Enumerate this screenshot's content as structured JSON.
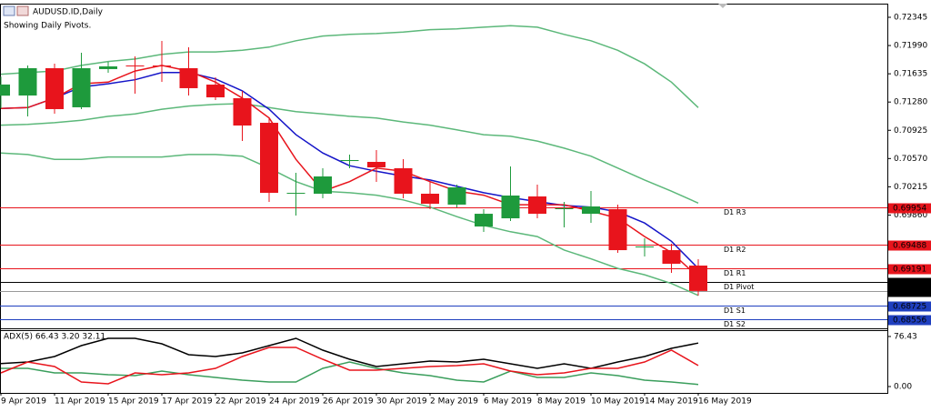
{
  "chart_data": [
    {
      "type": "candlestick",
      "title": "AUDUSD.ID,Daily",
      "subtitle": "Showing Daily Pivots.",
      "categories": [
        "9 Apr 2019",
        null,
        "11 Apr 2019",
        null,
        "15 Apr 2019",
        null,
        "17 Apr 2019",
        null,
        "22 Apr 2019",
        null,
        "24 Apr 2019",
        null,
        "26 Apr 2019",
        null,
        "30 Apr 2019",
        null,
        "2 May 2019",
        null,
        "6 May 2019",
        null,
        "8 May 2019",
        null,
        "10 May 2019",
        null,
        "14 May 2019",
        null,
        "16 May 2019"
      ],
      "open": [
        0.7136,
        0.71362,
        0.71705,
        0.71214,
        0.71694,
        0.71739,
        0.71739,
        0.71705,
        0.71499,
        0.71328,
        0.71019,
        0.70128,
        0.70128,
        0.70539,
        0.70528,
        0.70448,
        0.70128,
        0.69991,
        0.69716,
        0.69819,
        0.70094,
        0.69934,
        0.69876,
        0.69934,
        0.69454,
        0.69419,
        0.69225
      ],
      "high": [
        0.716,
        0.71739,
        0.71762,
        0.71899,
        0.71785,
        0.71853,
        0.72048,
        0.71968,
        0.71591,
        0.71419,
        0.71076,
        0.70391,
        0.70448,
        0.70619,
        0.70676,
        0.70562,
        0.70276,
        0.70242,
        0.69934,
        0.70471,
        0.70242,
        0.70025,
        0.70162,
        0.69991,
        0.69568,
        0.69499,
        0.69305
      ],
      "low": [
        0.712,
        0.71099,
        0.71134,
        0.71191,
        0.71648,
        0.71385,
        0.71534,
        0.71362,
        0.71305,
        0.70791,
        0.70025,
        0.69854,
        0.70071,
        0.70448,
        0.70276,
        0.70071,
        0.69934,
        0.69956,
        0.69648,
        0.69785,
        0.69819,
        0.69705,
        0.69762,
        0.69385,
        0.69339,
        0.69134,
        0.68848
      ],
      "close": [
        0.715,
        0.71705,
        0.71191,
        0.71705,
        0.71728,
        0.71728,
        0.71728,
        0.71454,
        0.71339,
        0.70985,
        0.70139,
        0.70139,
        0.70345,
        0.70551,
        0.70459,
        0.70128,
        0.70002,
        0.70208,
        0.69876,
        0.70105,
        0.69876,
        0.69945,
        0.69968,
        0.69419,
        0.69465,
        0.69248,
        0.68906
      ],
      "up_color": "#1e9a3c",
      "down_color": "#e8141c",
      "series": [
        {
          "color": "#5cb87a",
          "values": [
            0.7163,
            0.7165,
            0.7167,
            0.7174,
            0.7179,
            0.7182,
            0.7188,
            0.7191,
            0.7191,
            0.7193,
            0.7197,
            0.7205,
            0.7211,
            0.7213,
            0.7214,
            0.7216,
            0.7219,
            0.722,
            0.7222,
            0.7224,
            0.7222,
            0.7213,
            0.7205,
            0.7193,
            0.7176,
            0.7153,
            0.7121
          ]
        },
        {
          "color": "#5cb87a",
          "values": [
            0.7099,
            0.71,
            0.7102,
            0.7105,
            0.711,
            0.7113,
            0.7119,
            0.7123,
            0.7125,
            0.7126,
            0.7121,
            0.7116,
            0.7113,
            0.711,
            0.7108,
            0.7103,
            0.7099,
            0.7093,
            0.7087,
            0.7085,
            0.7079,
            0.707,
            0.706,
            0.7045,
            0.703,
            0.7016,
            0.7001
          ]
        },
        {
          "color": "#5cb87a",
          "values": [
            0.7064,
            0.7062,
            0.7056,
            0.7056,
            0.7059,
            0.7059,
            0.7059,
            0.7062,
            0.7062,
            0.706,
            0.7045,
            0.7028,
            0.7016,
            0.7014,
            0.7011,
            0.7005,
            0.6996,
            0.6984,
            0.6973,
            0.6965,
            0.6959,
            0.6942,
            0.6931,
            0.6919,
            0.6911,
            0.69,
            0.6885
          ]
        },
        {
          "color": "#1414c8",
          "values": [
            0.712,
            0.7121,
            0.7133,
            0.7147,
            0.7151,
            0.7156,
            0.7165,
            0.7165,
            0.7157,
            0.7142,
            0.7119,
            0.7087,
            0.7064,
            0.7048,
            0.7041,
            0.7035,
            0.703,
            0.7022,
            0.7014,
            0.7008,
            0.7003,
            0.6998,
            0.6996,
            0.699,
            0.6976,
            0.6953,
            0.6919
          ]
        },
        {
          "color": "#e8141c",
          "values": [
            0.712,
            0.7121,
            0.7133,
            0.7151,
            0.7153,
            0.7167,
            0.7174,
            0.7167,
            0.7153,
            0.7133,
            0.7108,
            0.7056,
            0.7016,
            0.7028,
            0.7045,
            0.7041,
            0.7028,
            0.7016,
            0.7011,
            0.6999,
            0.6999,
            0.6999,
            0.6991,
            0.6982,
            0.6959,
            0.6939,
            0.6908
          ]
        }
      ],
      "levels": [
        {
          "name": "D1 R3",
          "value": 0.69954,
          "color": "#e8141c"
        },
        {
          "name": "D1 R2",
          "value": 0.69488,
          "color": "#e8141c"
        },
        {
          "name": "D1 R1",
          "value": 0.69191,
          "color": "#e8141c"
        },
        {
          "name": "D1 Pivot",
          "value": 0.69022,
          "color": "#000000"
        },
        {
          "name": "D1 S1",
          "value": 0.68725,
          "color": "#1f3fbf"
        },
        {
          "name": "D1 S2",
          "value": 0.68556,
          "color": "#1f3fbf"
        }
      ],
      "current_price": 0.68906,
      "ylim": [
        0.68448,
        0.72505
      ],
      "yticks": [
        0.72345,
        {
          "value": 0.7199,
          "label": "0.71990"
        },
        0.71635,
        {
          "value": 0.7128,
          "label": "0.71280"
        },
        0.70925,
        {
          "value": 0.7057,
          "label": "0.70570"
        },
        0.70215,
        {
          "value": 0.6986,
          "label": "0.69860"
        }
      ]
    },
    {
      "type": "line",
      "title": "ADX(5) 66.43 3.20 32.11",
      "series": [
        {
          "color": "#000000",
          "values": [
            35.0,
            37.5,
            45.8,
            62.5,
            73.6,
            73.6,
            65.3,
            48.6,
            45.8,
            51.4,
            62.5,
            73.6,
            55.6,
            41.7,
            30.6,
            34.7,
            38.9,
            37.5,
            41.7,
            34.7,
            27.8,
            34.7,
            27.8,
            37.5,
            45.8,
            58.3,
            66.4
          ]
        },
        {
          "color": "#3a9e5c",
          "values": [
            27.8,
            27.8,
            20.8,
            20.8,
            18.1,
            16.7,
            23.6,
            18.1,
            13.9,
            9.7,
            6.9,
            6.9,
            27.8,
            37.5,
            27.8,
            20.8,
            16.7,
            9.7,
            6.9,
            23.6,
            13.9,
            13.9,
            20.8,
            16.7,
            9.7,
            6.9,
            3.2
          ]
        },
        {
          "color": "#e8141c",
          "values": [
            20.8,
            37.5,
            30.6,
            6.9,
            4.2,
            20.8,
            18.1,
            20.8,
            27.8,
            45.8,
            59.7,
            59.7,
            41.7,
            25.0,
            25.0,
            27.8,
            30.6,
            31.9,
            34.7,
            23.6,
            18.1,
            20.8,
            27.8,
            27.8,
            37.5,
            55.6,
            32.1
          ]
        }
      ],
      "ylim": [
        -9.7,
        87.5
      ],
      "yticks": [
        76.43,
        {
          "value": 0,
          "label": "0.00"
        }
      ]
    }
  ]
}
